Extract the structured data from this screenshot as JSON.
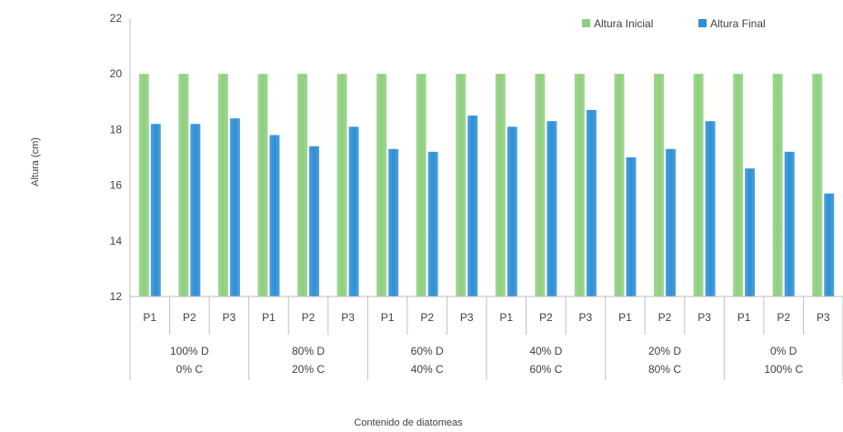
{
  "chart_data": {
    "type": "bar",
    "title": "",
    "xlabel": "Contenido de diatomeas",
    "ylabel": "Altura (cm)",
    "ylim": [
      12,
      22
    ],
    "yticks": [
      12,
      14,
      16,
      18,
      20,
      22
    ],
    "grid": false,
    "legend_position": "top-right",
    "categories": [
      "P1",
      "P2",
      "P3",
      "P1",
      "P2",
      "P3",
      "P1",
      "P2",
      "P3",
      "P1",
      "P2",
      "P3",
      "P1",
      "P2",
      "P3",
      "P1",
      "P2",
      "P3"
    ],
    "groups": [
      {
        "line1": "100% D",
        "line2": "0% C"
      },
      {
        "line1": "80% D",
        "line2": "20% C"
      },
      {
        "line1": "60% D",
        "line2": "40% C"
      },
      {
        "line1": "40% D",
        "line2": "60% C"
      },
      {
        "line1": "20% D",
        "line2": "80% C"
      },
      {
        "line1": "0% D",
        "line2": "100% C"
      }
    ],
    "series": [
      {
        "name": "Altura Inicial",
        "color": "#8fcf7f",
        "values": [
          20,
          20,
          20,
          20,
          20,
          20,
          20,
          20,
          20,
          20,
          20,
          20,
          20,
          20,
          20,
          20,
          20,
          20
        ]
      },
      {
        "name": "Altura Final",
        "color": "#2e8fd6",
        "values": [
          18.2,
          18.2,
          18.4,
          17.8,
          17.4,
          18.1,
          17.3,
          17.2,
          18.5,
          18.1,
          18.3,
          18.7,
          17.0,
          17.3,
          18.3,
          16.6,
          17.2,
          15.7
        ]
      }
    ]
  }
}
